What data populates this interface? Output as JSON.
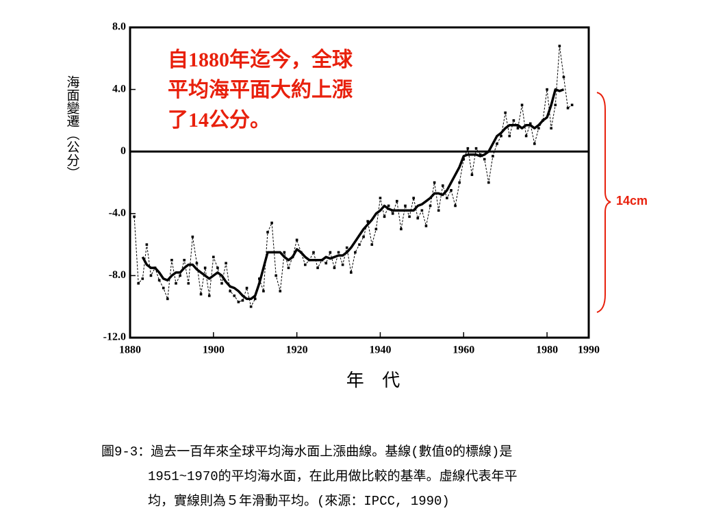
{
  "chart_data": {
    "type": "line",
    "ylabel": "海面變遷（公分）",
    "xlabel": "年 代",
    "annotation": [
      "自1880年迄今，全球",
      "平均海平面大約上漲",
      "了14公分。"
    ],
    "bracket_label": "14cm",
    "caption": [
      "圖9-3：過去一百年來全球平均海水面上漲曲線。基線(數值0的標線)是",
      "1951~1970的平均海水面，在此用做比較的基準。虛線代表年平",
      "均，實線則為５年滑動平均。(來源：IPCC, 1990)"
    ],
    "xlim": [
      1880,
      1990
    ],
    "xticks": [
      1880,
      1900,
      1920,
      1940,
      1960,
      1980,
      1990
    ],
    "ylim": [
      -12,
      8
    ],
    "yticks": [
      {
        "value": -12,
        "label": "-12.0"
      },
      {
        "value": -8,
        "label": "-8.0"
      },
      {
        "value": -4,
        "label": "-4.0"
      },
      0,
      {
        "value": 4,
        "label": "4.0"
      },
      {
        "value": 8,
        "label": "8.0"
      }
    ],
    "x": [
      1881,
      1882,
      1883,
      1884,
      1885,
      1886,
      1887,
      1888,
      1889,
      1890,
      1891,
      1892,
      1893,
      1894,
      1895,
      1896,
      1897,
      1898,
      1899,
      1900,
      1901,
      1902,
      1903,
      1904,
      1905,
      1906,
      1907,
      1908,
      1909,
      1910,
      1911,
      1912,
      1913,
      1914,
      1915,
      1916,
      1917,
      1918,
      1919,
      1920,
      1921,
      1922,
      1923,
      1924,
      1925,
      1926,
      1927,
      1928,
      1929,
      1930,
      1931,
      1932,
      1933,
      1934,
      1935,
      1936,
      1937,
      1938,
      1939,
      1940,
      1941,
      1942,
      1943,
      1944,
      1945,
      1946,
      1947,
      1948,
      1949,
      1950,
      1951,
      1952,
      1953,
      1954,
      1955,
      1956,
      1957,
      1958,
      1959,
      1960,
      1961,
      1962,
      1963,
      1964,
      1965,
      1966,
      1967,
      1968,
      1969,
      1970,
      1971,
      1972,
      1973,
      1974,
      1975,
      1976,
      1977,
      1978,
      1979,
      1980,
      1981,
      1982,
      1983,
      1984,
      1985,
      1986
    ],
    "series": [
      {
        "color": "#000000",
        "dashed": true,
        "values": [
          -4.2,
          -8.5,
          -8.2,
          -6.0,
          -8.0,
          -7.5,
          -8.3,
          -8.8,
          -9.5,
          -7.0,
          -8.5,
          -8.0,
          -7.0,
          -8.5,
          -5.5,
          -7.2,
          -9.2,
          -7.5,
          -9.3,
          -6.8,
          -7.5,
          -8.5,
          -7.2,
          -9.0,
          -9.3,
          -9.7,
          -9.6,
          -8.8,
          -10.0,
          -9.5,
          -8.2,
          -9.0,
          -5.2,
          -4.6,
          -8.0,
          -9.0,
          -6.5,
          -7.5,
          -6.8,
          -5.7,
          -6.5,
          -7.3,
          -7.0,
          -6.5,
          -7.5,
          -7.0,
          -7.2,
          -6.5,
          -7.5,
          -6.5,
          -7.3,
          -6.2,
          -7.8,
          -6.5,
          -6.0,
          -5.5,
          -4.5,
          -6.0,
          -5.0,
          -3.0,
          -4.2,
          -3.5,
          -4.0,
          -3.2,
          -5.0,
          -3.5,
          -4.2,
          -3.0,
          -4.3,
          -3.8,
          -4.8,
          -3.5,
          -2.0,
          -3.8,
          -2.2,
          -3.0,
          -2.5,
          -3.5,
          -2.0,
          -0.5,
          0.2,
          -1.5,
          0.2,
          -0.2,
          -0.5,
          -2.0,
          -0.3,
          0.5,
          1.0,
          2.5,
          1.0,
          2.0,
          1.5,
          3.0,
          1.0,
          1.8,
          0.5,
          1.5,
          2.0,
          4.0,
          1.5,
          3.0,
          6.8,
          4.8,
          2.8,
          3.0
        ]
      },
      {
        "color": "#000000",
        "dashed": false,
        "values": [
          null,
          null,
          -6.8,
          -7.3,
          -7.5,
          -7.5,
          -7.8,
          -8.2,
          -8.3,
          -8.0,
          -7.8,
          -7.8,
          -7.5,
          -7.3,
          -7.3,
          -7.6,
          -7.8,
          -8.0,
          -8.2,
          -8.0,
          -7.8,
          -8.0,
          -8.4,
          -8.7,
          -8.8,
          -9.0,
          -9.3,
          -9.5,
          -9.5,
          -9.3,
          -8.5,
          -7.5,
          -6.5,
          -6.5,
          -6.5,
          -6.5,
          -6.8,
          -7.0,
          -6.8,
          -6.3,
          -6.5,
          -6.8,
          -7.0,
          -7.0,
          -7.0,
          -7.0,
          -6.8,
          -6.9,
          -6.8,
          -6.7,
          -6.7,
          -6.5,
          -6.2,
          -5.8,
          -5.4,
          -5.0,
          -4.7,
          -4.4,
          -4.0,
          -3.8,
          -3.5,
          -3.7,
          -3.8,
          -3.8,
          -3.8,
          -3.8,
          -3.8,
          -3.8,
          -3.5,
          -3.4,
          -3.2,
          -3.0,
          -2.7,
          -2.7,
          -2.8,
          -2.5,
          -2.0,
          -1.5,
          -1.0,
          -0.3,
          -0.2,
          -0.2,
          -0.2,
          -0.3,
          -0.2,
          0.0,
          0.5,
          1.0,
          1.2,
          1.5,
          1.7,
          1.7,
          1.7,
          1.5,
          1.7,
          1.7,
          1.5,
          1.7,
          2.0,
          2.2,
          3.0,
          4.0,
          3.9,
          4.0,
          null,
          null
        ]
      }
    ]
  }
}
